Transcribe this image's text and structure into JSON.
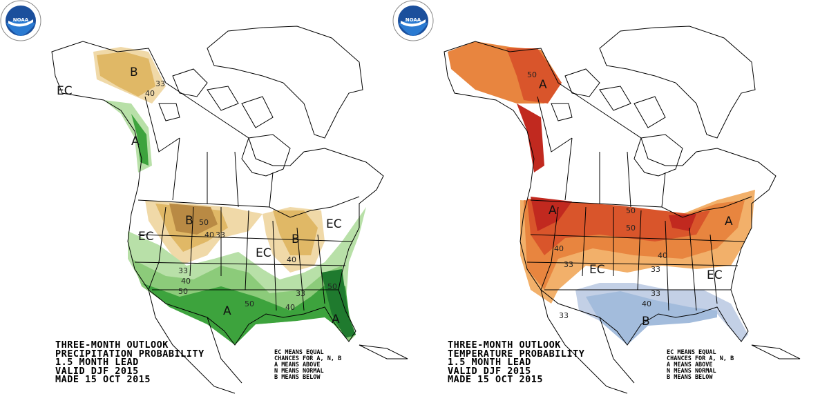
{
  "maps": [
    {
      "type": "precipitation",
      "title_lines": [
        "THREE-MONTH OUTLOOK",
        "PRECIPITATION PROBABILITY",
        "1.5 MONTH LEAD",
        "VALID DJF 2015",
        "MADE 15 OCT 2015"
      ],
      "legend_lines": [
        "EC MEANS EQUAL",
        "CHANCES FOR A, N, B",
        "A MEANS ABOVE",
        "N MEANS NORMAL",
        "B MEANS BELOW"
      ],
      "logo_text": "NOAA",
      "colors": {
        "below_33": "#f0d9a8",
        "below_40": "#e0b866",
        "below_50": "#b98a44",
        "above_33": "#b8e0a8",
        "above_40": "#8ccb7a",
        "above_50": "#3da33d",
        "above_60": "#1f7a2e"
      },
      "labels": {
        "ec_alaska": "EC",
        "b_alaska": "B",
        "c33_alaska": "33",
        "c40_alaska": "40",
        "a_pnw": "A",
        "b_plains": "B",
        "c50_plains": "50",
        "c40_plains": "40",
        "c33_plains": "33",
        "ec_west": "EC",
        "ec_mid": "EC",
        "b_lakes": "B",
        "c40_lakes": "40",
        "ec_ne": "EC",
        "c33_south": "33",
        "c40_south": "40",
        "c50_south": "50",
        "a_south": "A",
        "c50_tx": "50",
        "c33_se": "33",
        "c40_se": "40",
        "c50_se": "50",
        "a_fl": "A"
      }
    },
    {
      "type": "temperature",
      "title_lines": [
        "THREE-MONTH OUTLOOK",
        "TEMPERATURE PROBABILITY",
        "1.5 MONTH LEAD",
        "VALID DJF 2015",
        "MADE 15 OCT 2015"
      ],
      "legend_lines": [
        "EC MEANS EQUAL",
        "CHANCES FOR A, N, B",
        "A MEANS ABOVE",
        "N MEANS NORMAL",
        "B MEANS BELOW"
      ],
      "logo_text": "NOAA",
      "colors": {
        "above_33": "#f2b06a",
        "above_40": "#e8853f",
        "above_50": "#d9552b",
        "above_60": "#c1291f",
        "below_33": "#c3d0e6",
        "below_40": "#a3bcdc"
      },
      "labels": {
        "c50_alaska": "50",
        "a_alaska": "A",
        "a_west": "A",
        "c50_north": "50",
        "c50_north2": "50",
        "c40_west": "40",
        "c33_west": "33",
        "ec_central": "EC",
        "c33_central": "33",
        "c40_central": "40",
        "c33_south": "33",
        "c40_south": "40",
        "ec_se": "EC",
        "c33_sw": "33",
        "b_south": "B",
        "a_ne": "A"
      }
    }
  ]
}
